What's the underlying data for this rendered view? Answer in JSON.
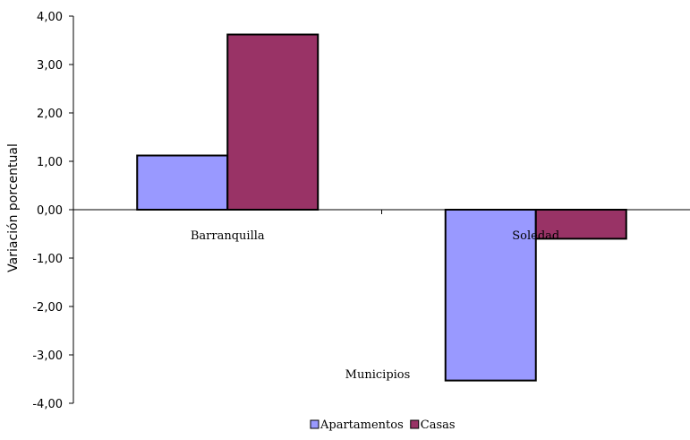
{
  "chart_data": {
    "type": "bar",
    "categories": [
      "Barranquilla",
      "Soledad"
    ],
    "series": [
      {
        "name": "Apartamentos",
        "color": "#9999ff",
        "values": [
          1.12,
          -3.53
        ]
      },
      {
        "name": "Casas",
        "color": "#993366",
        "values": [
          3.62,
          -0.6
        ]
      }
    ],
    "xlabel": "Municipios",
    "ylabel": "Variación porcentual",
    "ylim": [
      -4,
      4
    ],
    "yticks": [
      4,
      3,
      2,
      1,
      0,
      -1,
      -2,
      -3,
      -4
    ],
    "ytick_labels": [
      "4,00",
      "3,00",
      "2,00",
      "1,00",
      "0,00",
      "-1,00",
      "-2,00",
      "-3,00",
      "-4,00"
    ],
    "grid": false,
    "legend_position": "bottom"
  }
}
